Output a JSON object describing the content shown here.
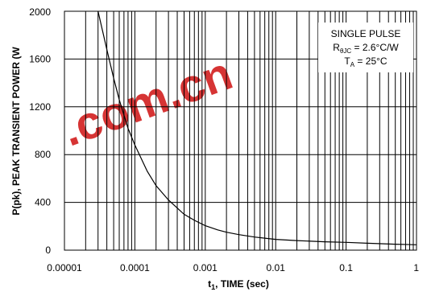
{
  "chart_data": {
    "type": "line",
    "title": "",
    "xlabel_main": "t",
    "xlabel_sub": "1",
    "xlabel_rest": ", TIME (sec)",
    "ylabel": "P(pk), PEAK TRANSIENT POWER (W",
    "x_scale": "log",
    "xlim": [
      1e-05,
      1
    ],
    "ylim": [
      0,
      2000
    ],
    "x_ticks": [
      1e-05,
      0.0001,
      0.001,
      0.01,
      0.1,
      1
    ],
    "x_tick_labels": [
      "0.00001",
      "0.0001",
      "0.001",
      "0.01",
      "0.1",
      "1"
    ],
    "y_ticks": [
      0,
      400,
      800,
      1200,
      1600,
      2000
    ],
    "y_tick_labels": [
      "0",
      "400",
      "800",
      "1200",
      "1600",
      "2000"
    ],
    "grid": true,
    "series": [
      {
        "x": [
          3e-05,
          4e-05,
          5e-05,
          6e-05,
          8e-05,
          0.0001,
          0.00015,
          0.0002,
          0.0003,
          0.0005,
          0.0007,
          0.001,
          0.0015,
          0.002,
          0.003,
          0.005,
          0.007,
          0.01,
          0.02,
          0.05,
          0.1,
          0.2,
          0.5,
          1
        ],
        "y": [
          2000,
          1680,
          1440,
          1260,
          1020,
          880,
          660,
          540,
          420,
          300,
          250,
          205,
          170,
          150,
          130,
          110,
          100,
          90,
          80,
          70,
          65,
          58,
          50,
          45
        ]
      }
    ],
    "legend_lines": [
      "SINGLE PULSE",
      "R",
      "θJC",
      " = 2.6°C/W",
      "T",
      "A",
      " = 25°C"
    ],
    "legend_placement": "top-right",
    "colors": {
      "line": "#000000",
      "grid": "#000000",
      "background": "#ffffff"
    }
  },
  "watermark": {
    "text": ".com.cn",
    "color": "#d42a2a"
  }
}
